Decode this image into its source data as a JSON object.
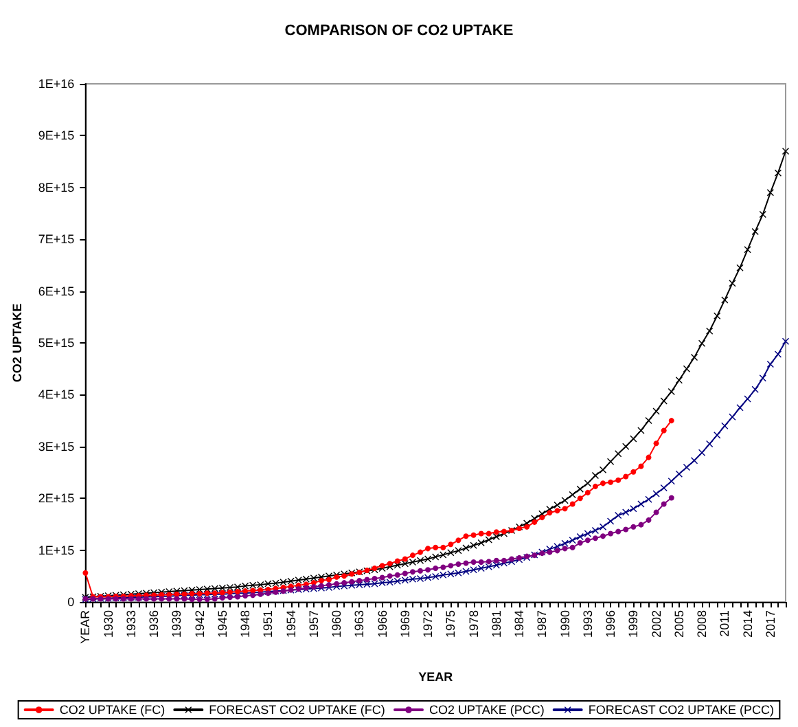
{
  "chart_data": {
    "type": "line",
    "title": "COMPARISON OF CO2 UPTAKE",
    "xlabel": "YEAR",
    "ylabel": "CO2 UPTAKE",
    "categories": [
      "YEAR",
      null,
      null,
      "1930",
      null,
      null,
      "1933",
      null,
      null,
      "1936",
      null,
      null,
      "1939",
      null,
      null,
      "1942",
      null,
      null,
      "1945",
      null,
      null,
      "1948",
      null,
      null,
      "1951",
      null,
      null,
      "1954",
      null,
      null,
      "1957",
      null,
      null,
      "1960",
      null,
      null,
      "1963",
      null,
      null,
      "1966",
      null,
      null,
      "1969",
      null,
      null,
      "1972",
      null,
      null,
      "1975",
      null,
      null,
      "1978",
      null,
      null,
      "1981",
      null,
      null,
      "1984",
      null,
      null,
      "1987",
      null,
      null,
      "1990",
      null,
      null,
      "1993",
      null,
      null,
      "1996",
      null,
      null,
      "1999",
      null,
      null,
      "2002",
      null,
      null,
      "2005",
      null,
      null,
      "2008",
      null,
      null,
      "2011",
      null,
      null,
      "2014",
      null,
      null,
      "2017",
      null,
      null
    ],
    "series": [
      {
        "name": "CO2 UPTAKE (FC)",
        "color": "#ff0000",
        "marker": "circle",
        "values": [
          560000000000000.0,
          100000000000000.0,
          100000000000000.0,
          100000000000000.0,
          110000000000000.0,
          110000000000000.0,
          120000000000000.0,
          120000000000000.0,
          130000000000000.0,
          130000000000000.0,
          140000000000000.0,
          140000000000000.0,
          150000000000000.0,
          150000000000000.0,
          160000000000000.0,
          160000000000000.0,
          170000000000000.0,
          170000000000000.0,
          180000000000000.0,
          190000000000000.0,
          200000000000000.0,
          210000000000000.0,
          220000000000000.0,
          230000000000000.0,
          240000000000000.0,
          260000000000000.0,
          280000000000000.0,
          300000000000000.0,
          320000000000000.0,
          340000000000000.0,
          370000000000000.0,
          410000000000000.0,
          430000000000000.0,
          480000000000000.0,
          500000000000000.0,
          540000000000000.0,
          570000000000000.0,
          610000000000000.0,
          650000000000000.0,
          700000000000000.0,
          740000000000000.0,
          790000000000000.0,
          830000000000000.0,
          900000000000000.0,
          960000000000000.0,
          1030000000000000.0,
          1050000000000000.0,
          1050000000000000.0,
          1110000000000000.0,
          1190000000000000.0,
          1270000000000000.0,
          1290000000000000.0,
          1320000000000000.0,
          1320000000000000.0,
          1350000000000000.0,
          1360000000000000.0,
          1380000000000000.0,
          1420000000000000.0,
          1450000000000000.0,
          1540000000000000.0,
          1630000000000000.0,
          1720000000000000.0,
          1760000000000000.0,
          1800000000000000.0,
          1890000000000000.0,
          2000000000000000.0,
          2110000000000000.0,
          2230000000000000.0,
          2290000000000000.0,
          2310000000000000.0,
          2350000000000000.0,
          2420000000000000.0,
          2510000000000000.0,
          2620000000000000.0,
          2790000000000000.0,
          3060000000000000.0,
          3310000000000000.0,
          3500000000000000.0,
          null,
          null,
          null,
          null,
          null,
          null,
          null,
          null,
          null,
          null,
          null,
          null,
          null,
          null,
          null
        ]
      },
      {
        "name": "FORECAST CO2 UPTAKE (FC)",
        "color": "#000000",
        "marker": "cross",
        "values": [
          90000000000000.0,
          100000000000000.0,
          110000000000000.0,
          120000000000000.0,
          130000000000000.0,
          140000000000000.0,
          150000000000000.0,
          160000000000000.0,
          170000000000000.0,
          180000000000000.0,
          190000000000000.0,
          200000000000000.0,
          210000000000000.0,
          220000000000000.0,
          230000000000000.0,
          240000000000000.0,
          250000000000000.0,
          260000000000000.0,
          270000000000000.0,
          280000000000000.0,
          290000000000000.0,
          310000000000000.0,
          320000000000000.0,
          330000000000000.0,
          350000000000000.0,
          360000000000000.0,
          380000000000000.0,
          400000000000000.0,
          420000000000000.0,
          440000000000000.0,
          460000000000000.0,
          480000000000000.0,
          500000000000000.0,
          520000000000000.0,
          540000000000000.0,
          560000000000000.0,
          580000000000000.0,
          600000000000000.0,
          620000000000000.0,
          650000000000000.0,
          680000000000000.0,
          710000000000000.0,
          740000000000000.0,
          770000000000000.0,
          800000000000000.0,
          830000000000000.0,
          870000000000000.0,
          910000000000000.0,
          950000000000000.0,
          990000000000000.0,
          1040000000000000.0,
          1090000000000000.0,
          1140000000000000.0,
          1200000000000000.0,
          1260000000000000.0,
          1320000000000000.0,
          1380000000000000.0,
          1450000000000000.0,
          1520000000000000.0,
          1610000000000000.0,
          1700000000000000.0,
          1790000000000000.0,
          1870000000000000.0,
          1960000000000000.0,
          2070000000000000.0,
          2180000000000000.0,
          2290000000000000.0,
          2440000000000000.0,
          2550000000000000.0,
          2710000000000000.0,
          2860000000000000.0,
          3000000000000000.0,
          3150000000000000.0,
          3310000000000000.0,
          3500000000000000.0,
          3680000000000000.0,
          3880000000000000.0,
          4060000000000000.0,
          4280000000000000.0,
          4500000000000000.0,
          4720000000000000.0,
          4990000000000000.0,
          5230000000000000.0,
          5520000000000000.0,
          5830000000000000.0,
          6150000000000000.0,
          6450000000000000.0,
          6800000000000000.0,
          7150000000000000.0,
          7480000000000000.0,
          7900000000000000.0,
          8280000000000000.0,
          8700000000000000.0
        ]
      },
      {
        "name": "CO2 UPTAKE (PCC)",
        "color": "#800080",
        "marker": "circle",
        "values": [
          60000000000000.0,
          60000000000000.0,
          60000000000000.0,
          60000000000000.0,
          60000000000000.0,
          60000000000000.0,
          60000000000000.0,
          60000000000000.0,
          60000000000000.0,
          60000000000000.0,
          60000000000000.0,
          60000000000000.0,
          60000000000000.0,
          60000000000000.0,
          50000000000000.0,
          50000000000000.0,
          50000000000000.0,
          60000000000000.0,
          80000000000000.0,
          90000000000000.0,
          100000000000000.0,
          120000000000000.0,
          130000000000000.0,
          150000000000000.0,
          170000000000000.0,
          190000000000000.0,
          210000000000000.0,
          230000000000000.0,
          250000000000000.0,
          270000000000000.0,
          290000000000000.0,
          310000000000000.0,
          330000000000000.0,
          350000000000000.0,
          370000000000000.0,
          390000000000000.0,
          410000000000000.0,
          430000000000000.0,
          450000000000000.0,
          470000000000000.0,
          500000000000000.0,
          520000000000000.0,
          550000000000000.0,
          580000000000000.0,
          600000000000000.0,
          620000000000000.0,
          650000000000000.0,
          670000000000000.0,
          700000000000000.0,
          730000000000000.0,
          750000000000000.0,
          770000000000000.0,
          770000000000000.0,
          780000000000000.0,
          800000000000000.0,
          800000000000000.0,
          830000000000000.0,
          850000000000000.0,
          880000000000000.0,
          900000000000000.0,
          940000000000000.0,
          960000000000000.0,
          990000000000000.0,
          1030000000000000.0,
          1050000000000000.0,
          1140000000000000.0,
          1190000000000000.0,
          1230000000000000.0,
          1270000000000000.0,
          1320000000000000.0,
          1360000000000000.0,
          1400000000000000.0,
          1450000000000000.0,
          1490000000000000.0,
          1580000000000000.0,
          1730000000000000.0,
          1890000000000000.0,
          2010000000000000.0,
          null,
          null,
          null,
          null,
          null,
          null,
          null,
          null,
          null,
          null,
          null,
          null,
          null,
          null,
          null
        ]
      },
      {
        "name": "FORECAST CO2 UPTAKE (PCC)",
        "color": "#000080",
        "marker": "cross",
        "values": [
          50000000000000.0,
          60000000000000.0,
          70000000000000.0,
          70000000000000.0,
          80000000000000.0,
          80000000000000.0,
          90000000000000.0,
          90000000000000.0,
          100000000000000.0,
          100000000000000.0,
          110000000000000.0,
          110000000000000.0,
          120000000000000.0,
          130000000000000.0,
          130000000000000.0,
          140000000000000.0,
          140000000000000.0,
          150000000000000.0,
          150000000000000.0,
          160000000000000.0,
          170000000000000.0,
          170000000000000.0,
          180000000000000.0,
          190000000000000.0,
          200000000000000.0,
          210000000000000.0,
          220000000000000.0,
          230000000000000.0,
          240000000000000.0,
          250000000000000.0,
          260000000000000.0,
          270000000000000.0,
          280000000000000.0,
          300000000000000.0,
          310000000000000.0,
          320000000000000.0,
          330000000000000.0,
          340000000000000.0,
          350000000000000.0,
          370000000000000.0,
          380000000000000.0,
          400000000000000.0,
          420000000000000.0,
          440000000000000.0,
          450000000000000.0,
          470000000000000.0,
          490000000000000.0,
          520000000000000.0,
          540000000000000.0,
          560000000000000.0,
          590000000000000.0,
          620000000000000.0,
          650000000000000.0,
          680000000000000.0,
          710000000000000.0,
          750000000000000.0,
          780000000000000.0,
          820000000000000.0,
          860000000000000.0,
          910000000000000.0,
          960000000000000.0,
          1020000000000000.0,
          1070000000000000.0,
          1130000000000000.0,
          1190000000000000.0,
          1260000000000000.0,
          1320000000000000.0,
          1380000000000000.0,
          1450000000000000.0,
          1560000000000000.0,
          1670000000000000.0,
          1730000000000000.0,
          1800000000000000.0,
          1890000000000000.0,
          1980000000000000.0,
          2090000000000000.0,
          2200000000000000.0,
          2330000000000000.0,
          2470000000000000.0,
          2600000000000000.0,
          2730000000000000.0,
          2880000000000000.0,
          3050000000000000.0,
          3220000000000000.0,
          3400000000000000.0,
          3570000000000000.0,
          3750000000000000.0,
          3920000000000000.0,
          4100000000000000.0,
          4320000000000000.0,
          4590000000000000.0,
          4780000000000000.0,
          5030000000000000.0
        ]
      }
    ],
    "ylim": [
      0,
      1e+16
    ],
    "yticks": [
      0,
      {
        "value": 1000000000000000.0,
        "label": "1E+15"
      },
      {
        "value": 2000000000000000.0,
        "label": "2E+15"
      },
      {
        "value": 3000000000000000.0,
        "label": "3E+15"
      },
      {
        "value": 4000000000000000.0,
        "label": "4E+15"
      },
      {
        "value": 5000000000000000.0,
        "label": "5E+15"
      },
      {
        "value": 6000000000000000.0,
        "label": "6E+15"
      },
      {
        "value": 7000000000000000.0,
        "label": "7E+15"
      },
      {
        "value": 8000000000000000.0,
        "label": "8E+15"
      },
      {
        "value": 9000000000000000.0,
        "label": "9E+15"
      },
      {
        "value": 1e+16,
        "label": "1E+16"
      }
    ],
    "grid": false,
    "legend": "bottom",
    "line_style": "solid"
  }
}
